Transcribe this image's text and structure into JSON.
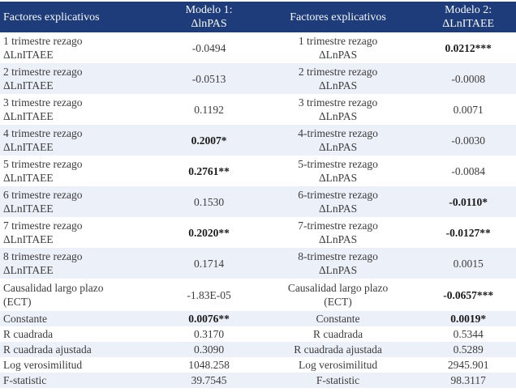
{
  "colors": {
    "header_bg": "#1e3c7a",
    "header_text": "#f7fafd",
    "row_alt_bg": "#ecf0f8",
    "body_text": "#3c3c3c"
  },
  "header": {
    "factors_left": "Factores explicativos",
    "model1": "Modelo 1:\nΔlnPAS",
    "factors_right": "Factores explicativos",
    "model2": "Modelo 2:\nΔLnITAEE"
  },
  "rows": [
    {
      "f1": "1 trimestre rezago\nΔLnITAEE",
      "v1": "-0.0494",
      "f2": "1 trimestre rezago\nΔLnPAS",
      "v2": "0.0212***"
    },
    {
      "f1": "2 trimestre rezago\nΔLnITAEE",
      "v1": "-0.0513",
      "f2": "2 trimestre rezago\nΔLnPAS",
      "v2": "-0.0008"
    },
    {
      "f1": "3 trimestre rezago\nΔLnITAEE",
      "v1": "0.1192",
      "f2": "3 trimestre rezago\nΔLnPAS",
      "v2": "0.0071"
    },
    {
      "f1": "4 trimestre rezago\nΔLnITAEE",
      "v1": "0.2007*",
      "f2": "4-trimestre rezago\nΔLnPAS",
      "v2": "-0.0030"
    },
    {
      "f1": "5 trimestre rezago\nΔLnITAEE",
      "v1": "0.2761**",
      "f2": "5-trimestre rezago\nΔLnPAS",
      "v2": "-0.0084"
    },
    {
      "f1": "6 trimestre rezago\nΔLnITAEE",
      "v1": "0.1530",
      "f2": "6-trimestre rezago\nΔLnPAS",
      "v2": "-0.0110*"
    },
    {
      "f1": "7 trimestre rezago\nΔLnITAEE",
      "v1": "0.2020**",
      "f2": "7-trimestre rezago\nΔLnPAS",
      "v2": "-0.0127**"
    },
    {
      "f1": "8 trimestre rezago\nΔLnITAEE",
      "v1": "0.1714",
      "f2": "8-trimestre rezago\nΔLnPAS",
      "v2": "0.0015"
    },
    {
      "f1": "Causalidad largo plazo\n(ECT)",
      "v1": "-1.83E-05",
      "f2": "Causalidad largo plazo\n(ECT)",
      "v2": "-0.0657***"
    },
    {
      "f1": "Constante",
      "v1": "0.0076**",
      "f2": "Constante",
      "v2": "0.0019*"
    },
    {
      "f1": "R cuadrada",
      "v1": "0.3170",
      "f2": "R cuadrada",
      "v2": "0.5344"
    },
    {
      "f1": "R cuadrada ajustada",
      "v1": "0.3090",
      "f2": "R cuadrada ajustada",
      "v2": "0.5289"
    },
    {
      "f1": "Log verosimilitud",
      "v1": "1048.258",
      "f2": "Log verosimilitud",
      "v2": "2945.901"
    },
    {
      "f1": "F-statistic",
      "v1": "39.7545",
      "f2": "F-statistic",
      "v2": "98.3117"
    }
  ]
}
